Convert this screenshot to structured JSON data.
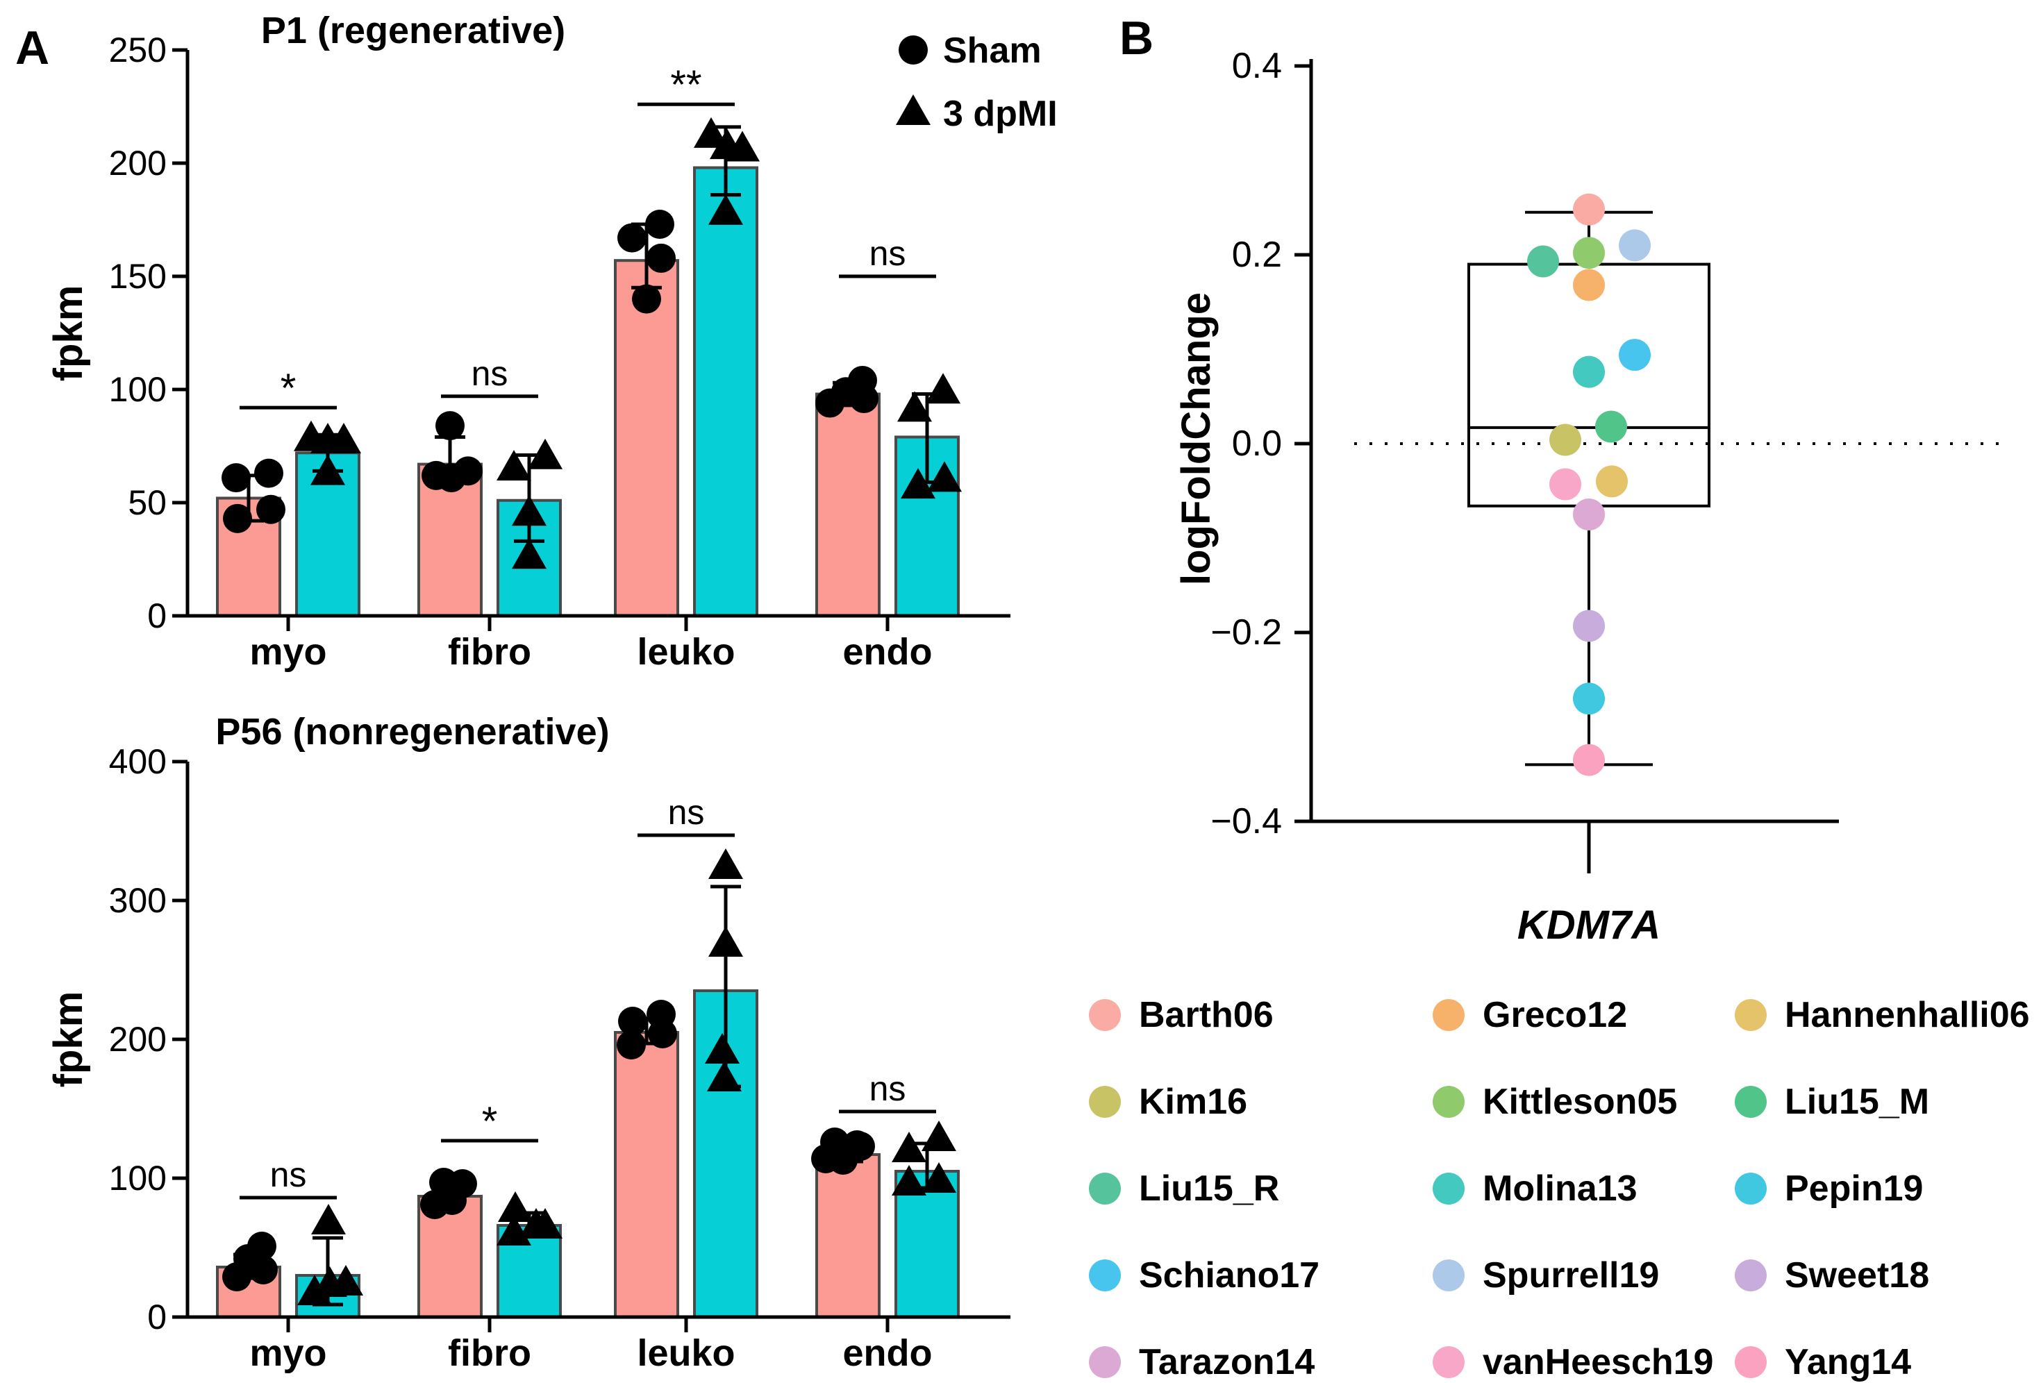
{
  "panel_a": {
    "label": "A"
  },
  "panel_b": {
    "label": "B"
  },
  "colors": {
    "sham_bar": "#FC9B94",
    "dpmi_bar": "#06CFD6",
    "bar_border": "#4A4A4A",
    "marker": "#000000"
  },
  "chart_data": [
    {
      "id": "p1",
      "type": "bar",
      "title": "P1 (regenerative)",
      "ylabel": "fpkm",
      "ylim": [
        0,
        250
      ],
      "yticks": [
        0,
        50,
        100,
        150,
        200,
        250
      ],
      "categories": [
        "myo",
        "fibro",
        "leuko",
        "endo"
      ],
      "legend": [
        {
          "label": "Sham",
          "marker": "circle"
        },
        {
          "label": "3 dpMI",
          "marker": "triangle"
        }
      ],
      "series": [
        {
          "name": "Sham",
          "marker": "circle",
          "bars": [
            52,
            67,
            157,
            98
          ],
          "err": [
            [
              42,
              62
            ],
            [
              60,
              79
            ],
            [
              145,
              173
            ],
            [
              93,
              103
            ]
          ],
          "points": [
            [
              [
                -18,
                61
              ],
              [
                29,
                63
              ],
              [
                -16,
                43
              ],
              [
                32,
                47
              ]
            ],
            [
              [
                0,
                84
              ],
              [
                -20,
                62
              ],
              [
                2,
                61
              ],
              [
                26,
                64
              ]
            ],
            [
              [
                -21,
                167
              ],
              [
                19,
                173
              ],
              [
                21,
                158
              ],
              [
                0,
                140
              ]
            ],
            [
              [
                -26,
                94
              ],
              [
                -3,
                99
              ],
              [
                21,
                104
              ],
              [
                23,
                96
              ]
            ]
          ]
        },
        {
          "name": "3 dpMI",
          "marker": "triangle",
          "bars": [
            72,
            51,
            198,
            79
          ],
          "err": [
            [
              64,
              80
            ],
            [
              33,
              71
            ],
            [
              186,
              216
            ],
            [
              59,
              98
            ]
          ],
          "points": [
            [
              [
                -24,
                78
              ],
              [
                0,
                77
              ],
              [
                23,
                77
              ],
              [
                0,
                63
              ]
            ],
            [
              [
                -22,
                65
              ],
              [
                23,
                70
              ],
              [
                0,
                45
              ],
              [
                0,
                26
              ]
            ],
            [
              [
                -21,
                212
              ],
              [
                2,
                207
              ],
              [
                24,
                206
              ],
              [
                0,
                178
              ]
            ],
            [
              [
                -18,
                91
              ],
              [
                23,
                99
              ],
              [
                -13,
                57
              ],
              [
                25,
                60
              ]
            ]
          ]
        }
      ],
      "significance": [
        {
          "label": "*",
          "y": 92
        },
        {
          "label": "ns",
          "y": 97
        },
        {
          "label": "**",
          "y": 226
        },
        {
          "label": "ns",
          "y": 150
        }
      ]
    },
    {
      "id": "p56",
      "type": "bar",
      "title": "P56 (nonregenerative)",
      "ylabel": "fpkm",
      "ylim": [
        0,
        400
      ],
      "yticks": [
        0,
        100,
        200,
        300,
        400
      ],
      "categories": [
        "myo",
        "fibro",
        "leuko",
        "endo"
      ],
      "series": [
        {
          "name": "Sham",
          "marker": "circle",
          "bars": [
            36,
            87,
            205,
            117
          ],
          "err": [
            [
              28,
              45
            ],
            [
              82,
              93
            ],
            [
              197,
              215
            ],
            [
              112,
              122
            ]
          ],
          "points": [
            [
              [
                19,
                51
              ],
              [
                -1,
                42
              ],
              [
                21,
                34
              ],
              [
                -17,
                29
              ]
            ],
            [
              [
                -9,
                97
              ],
              [
                18,
                96
              ],
              [
                -22,
                81
              ],
              [
                3,
                84
              ]
            ],
            [
              [
                -20,
                213
              ],
              [
                21,
                218
              ],
              [
                23,
                204
              ],
              [
                -22,
                196
              ]
            ],
            [
              [
                -19,
                126
              ],
              [
                13,
                124
              ],
              [
                18,
                123
              ],
              [
                -32,
                114
              ],
              [
                -7,
                113
              ]
            ]
          ]
        },
        {
          "name": "3 dpMI",
          "marker": "triangle",
          "bars": [
            30,
            66,
            235,
            105
          ],
          "err": [
            [
              9,
              57
            ],
            [
              61,
              75
            ],
            [
              166,
              310
            ],
            [
              93,
              125
            ]
          ],
          "points": [
            [
              [
                1,
                68
              ],
              [
                3,
                23
              ],
              [
                26,
                24
              ],
              [
                -19,
                17
              ]
            ],
            [
              [
                -20,
                77
              ],
              [
                -22,
                60
              ],
              [
                10,
                65
              ],
              [
                23,
                65
              ]
            ],
            [
              [
                0,
                324
              ],
              [
                0,
                268
              ],
              [
                -5,
                191
              ],
              [
                -2,
                171
              ]
            ],
            [
              [
                -26,
                120
              ],
              [
                17,
                128
              ],
              [
                -26,
                96
              ],
              [
                17,
                98
              ]
            ]
          ]
        }
      ],
      "significance": [
        {
          "label": "ns",
          "y": 86
        },
        {
          "label": "*",
          "y": 127
        },
        {
          "label": "ns",
          "y": 347
        },
        {
          "label": "ns",
          "y": 148
        }
      ]
    },
    {
      "id": "kdm7a",
      "type": "box",
      "ylabel": "logFoldChange",
      "xlabel": "KDM7A",
      "ylim": [
        -0.4,
        0.4
      ],
      "yticks": [
        {
          "v": 0.4,
          "label": "0.4"
        },
        {
          "v": 0.2,
          "label": "0.2"
        },
        {
          "v": 0.0,
          "label": "0.0"
        },
        {
          "v": -0.2,
          "label": "−0.2"
        },
        {
          "v": -0.4,
          "label": "−0.4"
        }
      ],
      "zero_line": 0.0,
      "box": {
        "whisker_low": -0.34,
        "q1": -0.066,
        "median": 0.017,
        "q3": 0.19,
        "whisker_high": 0.245
      },
      "points": [
        {
          "study": "Barth06",
          "value": 0.248,
          "dx": 0
        },
        {
          "study": "Spurrell19",
          "value": 0.21,
          "dx": 66
        },
        {
          "study": "Kittleson05",
          "value": 0.202,
          "dx": 0
        },
        {
          "study": "Liu15_R",
          "value": 0.193,
          "dx": -66
        },
        {
          "study": "Greco12",
          "value": 0.168,
          "dx": 0
        },
        {
          "study": "Schiano17",
          "value": 0.094,
          "dx": 66
        },
        {
          "study": "Molina13",
          "value": 0.076,
          "dx": 0
        },
        {
          "study": "Liu15_M",
          "value": 0.018,
          "dx": 32
        },
        {
          "study": "Kim16",
          "value": 0.004,
          "dx": -34
        },
        {
          "study": "Hannenhalli06",
          "value": -0.04,
          "dx": 33
        },
        {
          "study": "vanHeesch19",
          "value": -0.043,
          "dx": -34
        },
        {
          "study": "Tarazon14",
          "value": -0.075,
          "dx": 0
        },
        {
          "study": "Sweet18",
          "value": -0.193,
          "dx": 0
        },
        {
          "study": "Pepin19",
          "value": -0.27,
          "dx": 0
        },
        {
          "study": "Yang14",
          "value": -0.335,
          "dx": 0
        }
      ]
    }
  ],
  "legend_studies": [
    {
      "name": "Barth06",
      "color": "#F9ABA4"
    },
    {
      "name": "Greco12",
      "color": "#F6B26B"
    },
    {
      "name": "Hannenhalli06",
      "color": "#E4C36B"
    },
    {
      "name": "Kim16",
      "color": "#C8C466"
    },
    {
      "name": "Kittleson05",
      "color": "#8FCB6C"
    },
    {
      "name": "Liu15_M",
      "color": "#50C489"
    },
    {
      "name": "Liu15_R",
      "color": "#55C49D"
    },
    {
      "name": "Molina13",
      "color": "#43C9BF"
    },
    {
      "name": "Pepin19",
      "color": "#3FC8E0"
    },
    {
      "name": "Schiano17",
      "color": "#48C5EF"
    },
    {
      "name": "Spurrell19",
      "color": "#ACC9EA"
    },
    {
      "name": "Sweet18",
      "color": "#C8ACDC"
    },
    {
      "name": "Tarazon14",
      "color": "#DBA9D3"
    },
    {
      "name": "vanHeesch19",
      "color": "#F9A7C8"
    },
    {
      "name": "Yang14",
      "color": "#FBA2C0"
    }
  ]
}
